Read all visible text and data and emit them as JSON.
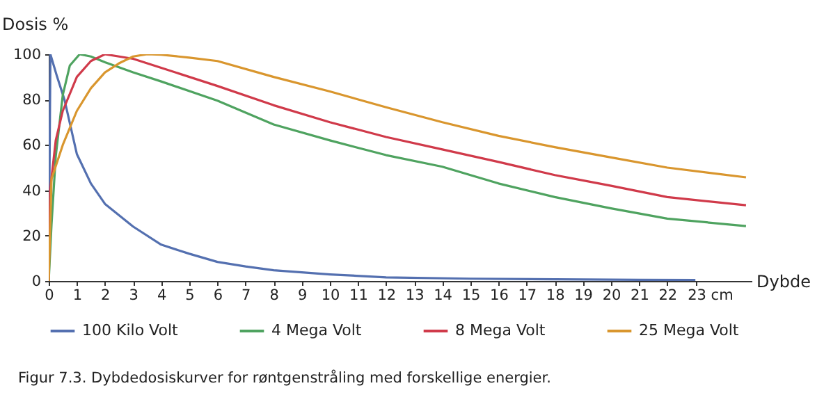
{
  "chart_data": {
    "type": "line",
    "xlabel": "Dybde",
    "ylabel": "Dosis %",
    "annotations": [
      "Figur 7.3. Dybdedosiskurver for røntgenstråling med forskellige energier."
    ],
    "xlim": [
      0,
      25
    ],
    "ylim": [
      0,
      100
    ],
    "xticks": [
      0,
      1,
      2,
      3,
      4,
      5,
      6,
      7,
      8,
      9,
      10,
      11,
      12,
      13,
      14,
      15,
      16,
      17,
      18,
      19,
      20,
      21,
      22,
      {
        "value": 23,
        "label": "23 cm"
      }
    ],
    "yticks": [
      0,
      20,
      40,
      60,
      80,
      100
    ],
    "grid": false,
    "legend": "bottom",
    "marker": "none",
    "line_style": "solid",
    "series": [
      {
        "name": "100 Kilo Volt",
        "color": "#5470b0",
        "x": [
          0,
          0.06,
          0.3,
          0.56,
          1,
          1.5,
          2,
          3,
          4,
          5,
          6,
          7,
          8,
          10,
          12,
          15,
          18,
          21,
          23
        ],
        "values": [
          0,
          100,
          90,
          80,
          56,
          43,
          34,
          24,
          16,
          12,
          8.4,
          6.4,
          4.7,
          2.9,
          1.6,
          1,
          0.7,
          0.5,
          0.4
        ]
      },
      {
        "name": "4 Mega Volt",
        "color": "#4fa360",
        "x": [
          0,
          0.1,
          0.25,
          0.5,
          0.75,
          1.1,
          1.5,
          2,
          3,
          4,
          6,
          8,
          10,
          12,
          14,
          16,
          18,
          20,
          22,
          24.8
        ],
        "values": [
          0,
          25,
          55,
          82,
          95,
          100,
          99,
          96.5,
          92,
          88,
          79.5,
          69,
          62,
          55.5,
          50.4,
          43,
          37,
          32,
          27.5,
          24.2
        ]
      },
      {
        "name": "8 Mega Volt",
        "color": "#d03a4a",
        "x": [
          0,
          0.05,
          0.25,
          0.5,
          1,
          1.5,
          2,
          3,
          4,
          6,
          8,
          10,
          12,
          14,
          16,
          18,
          20,
          22,
          24.8
        ],
        "values": [
          0,
          40,
          62,
          75,
          90,
          97,
          100,
          98,
          94,
          86,
          77.5,
          70,
          63.5,
          58,
          52.5,
          46.7,
          42,
          37,
          33.4
        ]
      },
      {
        "name": "25 Mega Volt",
        "color": "#d9962e",
        "x": [
          0,
          0.1,
          0.5,
          1,
          1.5,
          2,
          2.5,
          3,
          3.5,
          4,
          5,
          6,
          8,
          10,
          12,
          14,
          16,
          18,
          20,
          22,
          24.8
        ],
        "values": [
          0,
          45,
          60,
          75,
          85,
          92,
          96,
          99,
          100,
          99.8,
          98.5,
          97,
          90,
          83.6,
          76.6,
          70,
          64,
          59,
          54.5,
          50,
          45.7
        ]
      }
    ]
  }
}
